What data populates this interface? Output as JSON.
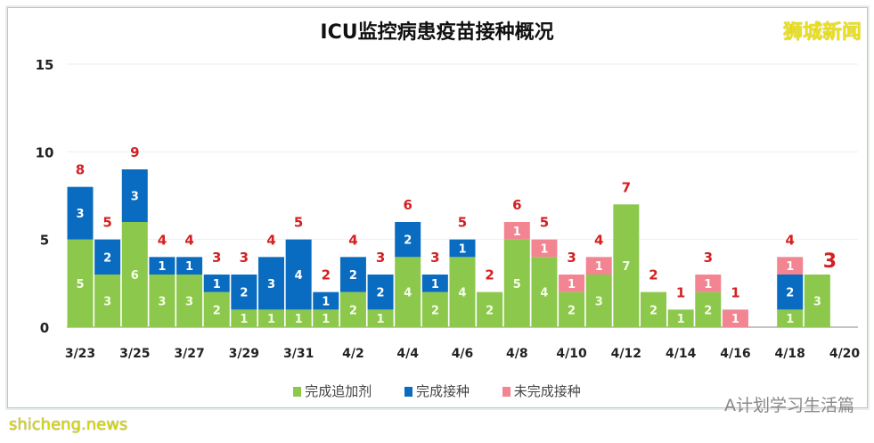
{
  "chart_data": {
    "type": "bar",
    "stacked": true,
    "title": "ICU监控病患疫苗接种概况",
    "categories": [
      "3/23",
      "3/24",
      "3/25",
      "3/26",
      "3/27",
      "3/28",
      "3/29",
      "3/30",
      "3/31",
      "4/1",
      "4/2",
      "4/3",
      "4/4",
      "4/5",
      "4/6",
      "4/7",
      "4/8",
      "4/9",
      "4/10",
      "4/11",
      "4/12",
      "4/13",
      "4/14",
      "4/15",
      "4/16",
      "4/17",
      "4/18",
      "4/19",
      "4/20"
    ],
    "tick_labels": [
      "3/23",
      "3/25",
      "3/27",
      "3/29",
      "3/31",
      "4/2",
      "4/4",
      "4/6",
      "4/8",
      "4/10",
      "4/12",
      "4/14",
      "4/16",
      "4/18",
      "4/20"
    ],
    "series": [
      {
        "name": "完成追加剂",
        "color": "#8cc84b",
        "values": [
          5,
          3,
          6,
          3,
          3,
          2,
          1,
          1,
          1,
          1,
          2,
          1,
          4,
          2,
          4,
          2,
          5,
          4,
          2,
          3,
          7,
          2,
          1,
          2,
          0,
          0,
          1,
          3,
          0
        ]
      },
      {
        "name": "完成接种",
        "color": "#0a6cc0",
        "values": [
          3,
          2,
          3,
          1,
          1,
          1,
          2,
          3,
          4,
          1,
          2,
          2,
          2,
          1,
          1,
          0,
          0,
          0,
          0,
          0,
          0,
          0,
          0,
          0,
          0,
          0,
          2,
          0,
          0
        ]
      },
      {
        "name": "未完成接种",
        "color": "#f28591",
        "values": [
          0,
          0,
          0,
          0,
          0,
          0,
          0,
          0,
          0,
          0,
          0,
          0,
          0,
          0,
          0,
          0,
          1,
          1,
          1,
          1,
          0,
          0,
          0,
          1,
          1,
          0,
          1,
          0,
          0
        ]
      }
    ],
    "totals": [
      8,
      5,
      9,
      4,
      4,
      3,
      3,
      4,
      5,
      2,
      4,
      3,
      6,
      3,
      5,
      2,
      6,
      5,
      3,
      4,
      7,
      2,
      1,
      3,
      1,
      null,
      4,
      3,
      null
    ],
    "ylim": [
      0,
      15
    ],
    "yticks": [
      0,
      5,
      10,
      15
    ],
    "grid": true,
    "legend_position": "bottom",
    "total_label_color": "#d42020"
  },
  "watermarks": {
    "top_right": "狮城新闻",
    "bottom_right": "A计划学习生活篇",
    "bottom_left": "shicheng.news"
  }
}
